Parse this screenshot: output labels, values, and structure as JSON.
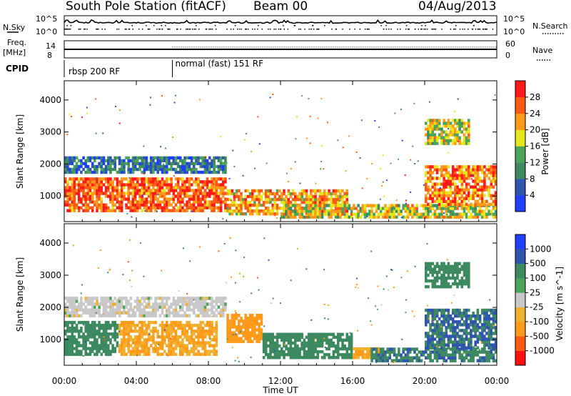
{
  "header": {
    "station": "South Pole Station (fitACF)",
    "beam": "Beam 00",
    "date": "04/Aug/2013"
  },
  "strip_labels": {
    "nsky": "N.Sky",
    "nsearch": "N.Search",
    "freq_line1": "Freq.",
    "freq_line2": "[MHz]",
    "nave": "Nave",
    "cpid": "CPID"
  },
  "strip_ticks": {
    "noise_left_top": "10^5",
    "noise_left_bottom": "10^0",
    "noise_right_top": "10^5",
    "noise_right_bottom": "10^0",
    "freq_left_top": "14",
    "freq_left_bottom": "8",
    "freq_right_top": "60",
    "freq_right_bottom": "0"
  },
  "cpid_modes": [
    {
      "label": "rbsp 200 RF",
      "start_hour": 0
    },
    {
      "label": "normal (fast) 151 RF",
      "start_hour": 6
    }
  ],
  "colors": {
    "power_scale": [
      "#1f3fff",
      "#2f55b0",
      "#3d8a60",
      "#4aa45a",
      "#e6e61a",
      "#ff9a1a",
      "#ff5a14",
      "#ff1a1a"
    ],
    "velocity_scale": [
      "#ff1010",
      "#ff5a14",
      "#ff9a1a",
      "#f0b030",
      "#c8c8c8",
      "#4aa45a",
      "#3d8a60",
      "#2f55b0",
      "#1f3fff"
    ]
  },
  "chart_data": [
    {
      "type": "heatmap",
      "name": "power",
      "xlabel": "Time UT",
      "ylabel": "Slant Range [km]",
      "colorbar_label": "Power [dB]",
      "colorbar_ticks": [
        "4",
        "8",
        "12",
        "16",
        "20",
        "24",
        "28"
      ],
      "xlim": [
        0,
        24
      ],
      "ylim": [
        200,
        4600
      ],
      "x_ticks": [
        "00:00",
        "04:00",
        "08:00",
        "12:00",
        "16:00",
        "20:00",
        "00:00"
      ],
      "x_tick_hours": [
        0,
        4,
        8,
        12,
        16,
        20,
        24
      ],
      "y_ticks": [
        "1000",
        "2000",
        "3000",
        "4000"
      ],
      "y_tick_values": [
        1000,
        2000,
        3000,
        4000
      ],
      "features": [
        {
          "region": "main band",
          "time_start": 0,
          "time_end": 9,
          "range_start": 500,
          "range_end": 1500,
          "power_db": 26
        },
        {
          "region": "main band",
          "time_start": 9,
          "time_end": 15.7,
          "range_start": 400,
          "range_end": 1200,
          "power_db": 22
        },
        {
          "region": "upper band",
          "time_start": 0,
          "time_end": 9,
          "range_start": 1700,
          "range_end": 2200,
          "power_db": 8
        },
        {
          "region": "low band",
          "time_start": 12,
          "time_end": 24,
          "range_start": 300,
          "range_end": 700,
          "power_db": 18
        },
        {
          "region": "main band",
          "time_start": 20,
          "time_end": 24,
          "range_start": 700,
          "range_end": 1900,
          "power_db": 24
        },
        {
          "region": "high echoes",
          "time_start": 20,
          "time_end": 22.5,
          "range_start": 2600,
          "range_end": 3400,
          "power_db": 18
        }
      ]
    },
    {
      "type": "heatmap",
      "name": "velocity",
      "xlabel": "Time UT",
      "ylabel": "Slant Range [km]",
      "colorbar_label": "Velocity [m s^-1]",
      "colorbar_ticks": [
        "1000",
        "500",
        "100",
        "25",
        "-25",
        "-100",
        "-500",
        "-1000"
      ],
      "xlim": [
        0,
        24
      ],
      "ylim": [
        200,
        4600
      ],
      "x_ticks": [
        "00:00",
        "04:00",
        "08:00",
        "12:00",
        "16:00",
        "20:00",
        "00:00"
      ],
      "x_tick_hours": [
        0,
        4,
        8,
        12,
        16,
        20,
        24
      ],
      "y_ticks": [
        "1000",
        "2000",
        "3000",
        "4000"
      ],
      "y_tick_values": [
        1000,
        2000,
        3000,
        4000
      ],
      "features": [
        {
          "region": "main band",
          "time_start": 0,
          "time_end": 3,
          "range_start": 500,
          "range_end": 1500,
          "velocity": 300
        },
        {
          "region": "main band",
          "time_start": 3,
          "time_end": 8.5,
          "range_start": 500,
          "range_end": 1500,
          "velocity": -100
        },
        {
          "region": "upper band",
          "time_start": 0,
          "time_end": 9,
          "range_start": 1700,
          "range_end": 2300,
          "velocity": 0
        },
        {
          "region": "main band",
          "time_start": 9,
          "time_end": 11,
          "range_start": 900,
          "range_end": 1800,
          "velocity": -300
        },
        {
          "region": "main band",
          "time_start": 11,
          "time_end": 16,
          "range_start": 400,
          "range_end": 1200,
          "velocity": 200
        },
        {
          "region": "patch",
          "time_start": 16,
          "time_end": 17.5,
          "range_start": 400,
          "range_end": 700,
          "velocity": -100
        },
        {
          "region": "low band",
          "time_start": 17,
          "time_end": 24,
          "range_start": 300,
          "range_end": 700,
          "velocity": 400
        },
        {
          "region": "main band",
          "time_start": 20,
          "time_end": 24,
          "range_start": 700,
          "range_end": 1900,
          "velocity": 500
        },
        {
          "region": "high echoes",
          "time_start": 20,
          "time_end": 22.5,
          "range_start": 2600,
          "range_end": 3400,
          "velocity": 300
        }
      ]
    }
  ]
}
